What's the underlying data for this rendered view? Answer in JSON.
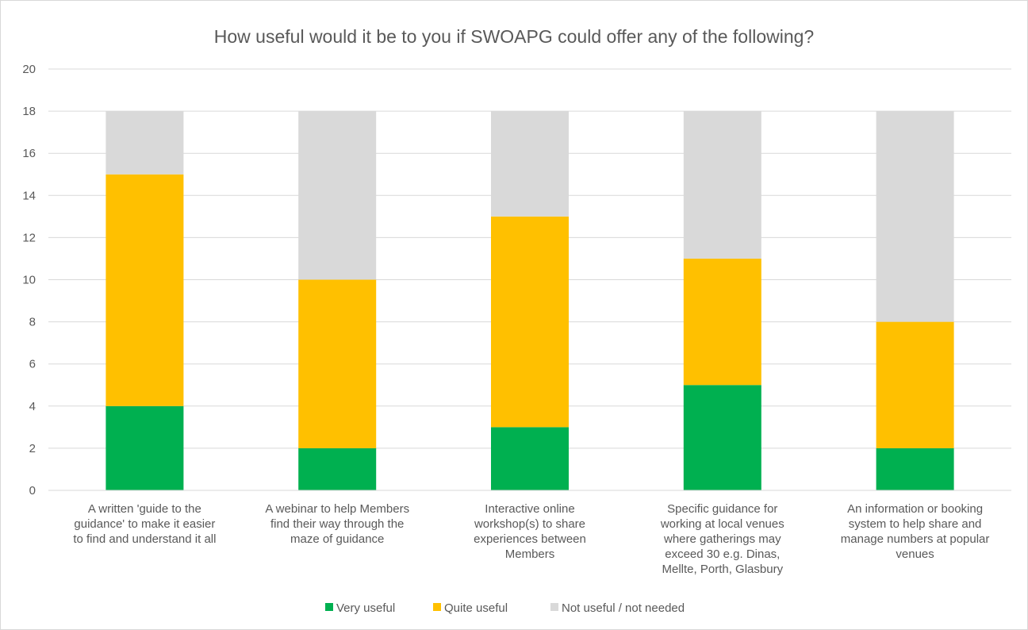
{
  "chart_data": {
    "type": "bar",
    "stacked": true,
    "title": "How useful would it be to you if SWOAPG could offer any of the following?",
    "xlabel": "",
    "ylabel": "",
    "ylim": [
      0,
      20
    ],
    "yticks": [
      0,
      2,
      4,
      6,
      8,
      10,
      12,
      14,
      16,
      18,
      20
    ],
    "grid": true,
    "legend_position": "bottom",
    "categories": [
      [
        "A written 'guide to the",
        "guidance' to make it easier",
        "to find and understand it all"
      ],
      [
        "A webinar to help Members",
        "find their way through the",
        "maze of guidance"
      ],
      [
        "Interactive online",
        "workshop(s) to share",
        "experiences between",
        "Members"
      ],
      [
        "Specific guidance for",
        "working at local venues",
        "where gatherings may",
        "exceed 30 e.g. Dinas,",
        "Mellte, Porth, Glasbury"
      ],
      [
        "An information or booking",
        "system to help share and",
        "manage numbers at popular",
        "venues"
      ]
    ],
    "series": [
      {
        "name": "Very useful",
        "color": "#00b050",
        "values": [
          4,
          2,
          3,
          5,
          2
        ]
      },
      {
        "name": "Quite useful",
        "color": "#ffc000",
        "values": [
          11,
          8,
          10,
          6,
          6
        ]
      },
      {
        "name": "Not useful / not needed",
        "color": "#d9d9d9",
        "values": [
          3,
          8,
          5,
          7,
          10
        ]
      }
    ]
  }
}
